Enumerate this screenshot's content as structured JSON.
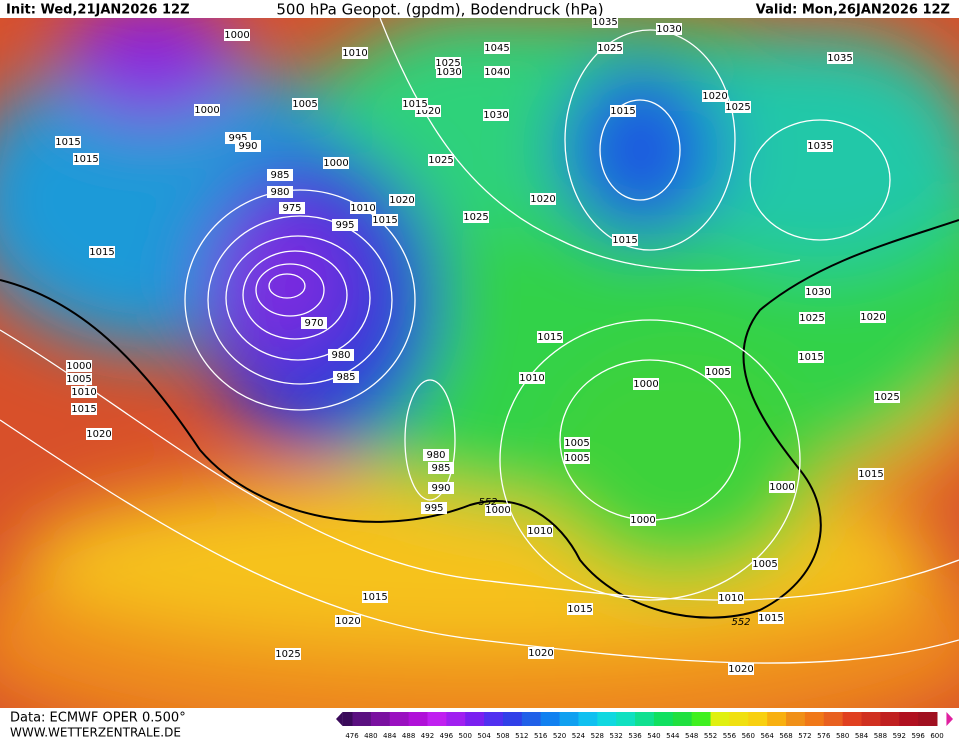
{
  "header": {
    "init": "Init: Wed,21JAN2026 12Z",
    "title": "500 hPa Geopot. (gpdm), Bodendruck (hPa)",
    "valid": "Valid: Mon,26JAN2026 12Z"
  },
  "footer": {
    "source": "Data: ECMWF OPER 0.500°",
    "site": "WWW.WETTERZENTRALE.DE"
  },
  "colorbar": {
    "ticks": [
      476,
      480,
      484,
      488,
      492,
      496,
      500,
      504,
      508,
      512,
      516,
      520,
      524,
      528,
      532,
      536,
      540,
      544,
      548,
      552,
      556,
      560,
      564,
      568,
      572,
      576,
      580,
      584,
      588,
      592,
      596,
      600
    ]
  },
  "isobar_labels": [
    "1000",
    "1010",
    "1005",
    "1000",
    "995",
    "990",
    "1015",
    "1015",
    "985",
    "980",
    "975",
    "1000",
    "1010",
    "995",
    "1015",
    "1020",
    "1025",
    "1020",
    "1015",
    "1025",
    "1030",
    "1045",
    "1040",
    "1030",
    "1035",
    "1030",
    "1025",
    "1015",
    "1020",
    "1025",
    "1035",
    "1035",
    "1015",
    "1020",
    "1025",
    "1015",
    "970",
    "980",
    "985",
    "1015",
    "1010",
    "1000",
    "1005",
    "1030",
    "1025",
    "1020",
    "1015",
    "1025",
    "1000",
    "1005",
    "1010",
    "1015",
    "1020",
    "980",
    "985",
    "990",
    "995",
    "1000",
    "1005",
    "1005",
    "1010",
    "1000",
    "1000",
    "1015",
    "1005",
    "1010",
    "1015",
    "1015",
    "1015",
    "1020",
    "1020",
    "1020",
    "1025"
  ],
  "contour_labels": [
    "552",
    "552"
  ]
}
